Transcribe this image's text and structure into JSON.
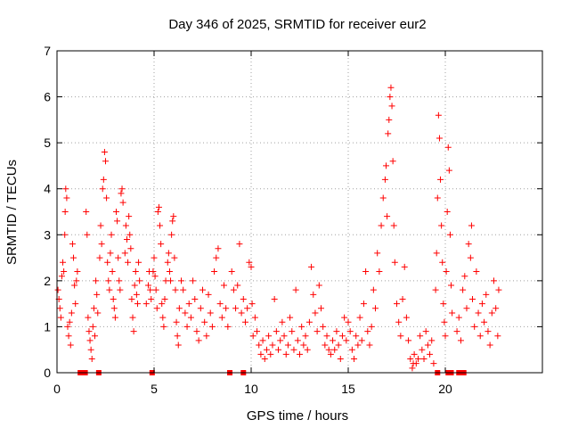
{
  "chart_data": {
    "type": "scatter",
    "title": "Day 346 of 2025, SRMTID for receiver eur2",
    "xlabel": "GPS time / hours",
    "ylabel": "SRMTID / TECUs",
    "xlim": [
      0,
      25
    ],
    "ylim": [
      0,
      7
    ],
    "xticks": [
      "0",
      "5",
      "10",
      "15",
      "20"
    ],
    "xtick_values": [
      0,
      5,
      10,
      15,
      20
    ],
    "yticks": [
      "0",
      "1",
      "2",
      "3",
      "4",
      "5",
      "6",
      "7"
    ],
    "ytick_values": [
      0,
      1,
      2,
      3,
      4,
      5,
      6,
      7
    ],
    "grid": true,
    "marker": "plus",
    "color": "#ff0000",
    "zero_markers_x": [
      1.2,
      1.45,
      2.15,
      4.9,
      8.9,
      9.6,
      19.6,
      20.15,
      20.3,
      20.7,
      20.95
    ],
    "series": [
      {
        "name": "SRMTID",
        "points": [
          [
            0.05,
            1.8
          ],
          [
            0.1,
            1.6
          ],
          [
            0.15,
            1.4
          ],
          [
            0.2,
            1.2
          ],
          [
            0.25,
            2.1
          ],
          [
            0.3,
            2.4
          ],
          [
            0.35,
            2.2
          ],
          [
            0.4,
            3.0
          ],
          [
            0.42,
            3.5
          ],
          [
            0.45,
            4.0
          ],
          [
            0.5,
            3.8
          ],
          [
            0.55,
            1.0
          ],
          [
            0.6,
            0.8
          ],
          [
            0.65,
            1.1
          ],
          [
            0.7,
            0.6
          ],
          [
            0.75,
            1.3
          ],
          [
            0.8,
            2.8
          ],
          [
            0.85,
            2.5
          ],
          [
            0.9,
            1.9
          ],
          [
            0.95,
            1.5
          ],
          [
            1.0,
            2.0
          ],
          [
            1.05,
            2.2
          ],
          [
            1.5,
            3.5
          ],
          [
            1.55,
            3.0
          ],
          [
            1.6,
            1.2
          ],
          [
            1.65,
            0.9
          ],
          [
            1.7,
            0.7
          ],
          [
            1.75,
            0.5
          ],
          [
            1.8,
            0.3
          ],
          [
            1.85,
            1.0
          ],
          [
            1.9,
            1.4
          ],
          [
            1.95,
            0.8
          ],
          [
            2.0,
            2.0
          ],
          [
            2.05,
            1.7
          ],
          [
            2.1,
            1.3
          ],
          [
            2.2,
            2.5
          ],
          [
            2.25,
            3.2
          ],
          [
            2.3,
            2.8
          ],
          [
            2.35,
            4.0
          ],
          [
            2.4,
            4.2
          ],
          [
            2.45,
            4.8
          ],
          [
            2.5,
            4.6
          ],
          [
            2.55,
            3.8
          ],
          [
            2.6,
            2.4
          ],
          [
            2.65,
            2.0
          ],
          [
            2.7,
            1.8
          ],
          [
            2.75,
            2.6
          ],
          [
            2.8,
            3.0
          ],
          [
            2.85,
            2.2
          ],
          [
            2.9,
            1.6
          ],
          [
            2.95,
            1.4
          ],
          [
            3.0,
            1.2
          ],
          [
            3.05,
            3.5
          ],
          [
            3.1,
            3.3
          ],
          [
            3.15,
            2.5
          ],
          [
            3.2,
            2.0
          ],
          [
            3.25,
            1.8
          ],
          [
            3.3,
            3.9
          ],
          [
            3.35,
            4.0
          ],
          [
            3.4,
            3.7
          ],
          [
            3.5,
            2.6
          ],
          [
            3.55,
            3.2
          ],
          [
            3.6,
            2.9
          ],
          [
            3.65,
            2.4
          ],
          [
            3.7,
            3.4
          ],
          [
            3.75,
            3.0
          ],
          [
            3.8,
            2.7
          ],
          [
            3.85,
            1.6
          ],
          [
            3.9,
            1.2
          ],
          [
            3.95,
            0.9
          ],
          [
            4.0,
            1.9
          ],
          [
            4.05,
            2.2
          ],
          [
            4.1,
            1.7
          ],
          [
            4.15,
            1.5
          ],
          [
            4.2,
            2.4
          ],
          [
            4.25,
            2.0
          ],
          [
            4.6,
            1.5
          ],
          [
            4.7,
            1.9
          ],
          [
            4.75,
            2.2
          ],
          [
            4.8,
            1.8
          ],
          [
            4.85,
            1.6
          ],
          [
            4.95,
            2.2
          ],
          [
            5.0,
            2.5
          ],
          [
            5.05,
            2.1
          ],
          [
            5.1,
            1.8
          ],
          [
            5.15,
            1.4
          ],
          [
            5.2,
            3.5
          ],
          [
            5.25,
            3.6
          ],
          [
            5.3,
            3.2
          ],
          [
            5.35,
            2.8
          ],
          [
            5.4,
            1.5
          ],
          [
            5.45,
            1.2
          ],
          [
            5.5,
            1.0
          ],
          [
            5.55,
            1.6
          ],
          [
            5.6,
            2.0
          ],
          [
            5.7,
            2.4
          ],
          [
            5.75,
            2.6
          ],
          [
            5.8,
            2.2
          ],
          [
            5.85,
            2.0
          ],
          [
            5.9,
            3.0
          ],
          [
            5.95,
            3.3
          ],
          [
            6.0,
            3.4
          ],
          [
            6.05,
            2.5
          ],
          [
            6.1,
            1.8
          ],
          [
            6.15,
            1.1
          ],
          [
            6.2,
            0.8
          ],
          [
            6.25,
            0.6
          ],
          [
            6.3,
            1.4
          ],
          [
            6.4,
            2.0
          ],
          [
            6.5,
            1.8
          ],
          [
            6.6,
            1.3
          ],
          [
            6.7,
            1.0
          ],
          [
            6.8,
            1.5
          ],
          [
            6.9,
            1.2
          ],
          [
            7.0,
            2.0
          ],
          [
            7.1,
            1.6
          ],
          [
            7.2,
            0.9
          ],
          [
            7.3,
            0.7
          ],
          [
            7.4,
            1.4
          ],
          [
            7.5,
            1.8
          ],
          [
            7.6,
            1.1
          ],
          [
            7.7,
            0.8
          ],
          [
            7.8,
            1.7
          ],
          [
            7.9,
            1.3
          ],
          [
            8.0,
            1.0
          ],
          [
            8.1,
            2.2
          ],
          [
            8.2,
            2.5
          ],
          [
            8.3,
            2.7
          ],
          [
            8.4,
            1.5
          ],
          [
            8.5,
            1.2
          ],
          [
            8.6,
            1.9
          ],
          [
            8.7,
            1.4
          ],
          [
            8.8,
            1.0
          ],
          [
            9.0,
            2.2
          ],
          [
            9.1,
            1.8
          ],
          [
            9.2,
            1.4
          ],
          [
            9.3,
            1.9
          ],
          [
            9.4,
            2.8
          ],
          [
            9.5,
            1.3
          ],
          [
            9.6,
            1.6
          ],
          [
            9.7,
            1.1
          ],
          [
            9.8,
            1.4
          ],
          [
            9.9,
            2.4
          ],
          [
            10.0,
            2.3
          ],
          [
            10.05,
            1.5
          ],
          [
            10.1,
            0.8
          ],
          [
            10.2,
            1.2
          ],
          [
            10.3,
            0.9
          ],
          [
            10.4,
            0.6
          ],
          [
            10.5,
            0.4
          ],
          [
            10.6,
            0.7
          ],
          [
            10.7,
            0.3
          ],
          [
            10.8,
            0.5
          ],
          [
            10.9,
            0.8
          ],
          [
            11.0,
            0.4
          ],
          [
            11.1,
            0.6
          ],
          [
            11.2,
            1.6
          ],
          [
            11.3,
            0.9
          ],
          [
            11.4,
            0.5
          ],
          [
            11.5,
            0.7
          ],
          [
            11.6,
            1.1
          ],
          [
            11.7,
            0.8
          ],
          [
            11.8,
            0.4
          ],
          [
            11.9,
            0.6
          ],
          [
            12.0,
            1.2
          ],
          [
            12.1,
            0.9
          ],
          [
            12.2,
            0.5
          ],
          [
            12.3,
            1.8
          ],
          [
            12.4,
            0.7
          ],
          [
            12.5,
            0.4
          ],
          [
            12.6,
            1.0
          ],
          [
            12.7,
            0.6
          ],
          [
            12.8,
            0.8
          ],
          [
            12.9,
            0.5
          ],
          [
            13.0,
            1.1
          ],
          [
            13.1,
            2.3
          ],
          [
            13.2,
            1.7
          ],
          [
            13.3,
            1.3
          ],
          [
            13.4,
            0.9
          ],
          [
            13.5,
            1.9
          ],
          [
            13.6,
            1.4
          ],
          [
            13.7,
            1.0
          ],
          [
            13.8,
            0.6
          ],
          [
            13.9,
            0.8
          ],
          [
            14.0,
            0.5
          ],
          [
            14.1,
            0.4
          ],
          [
            14.2,
            0.7
          ],
          [
            14.3,
            0.5
          ],
          [
            14.4,
            0.9
          ],
          [
            14.5,
            0.6
          ],
          [
            14.6,
            0.3
          ],
          [
            14.7,
            0.8
          ],
          [
            14.8,
            1.2
          ],
          [
            14.9,
            0.7
          ],
          [
            15.0,
            1.1
          ],
          [
            15.1,
            0.9
          ],
          [
            15.2,
            0.5
          ],
          [
            15.3,
            0.3
          ],
          [
            15.4,
            0.8
          ],
          [
            15.5,
            0.6
          ],
          [
            15.6,
            1.2
          ],
          [
            15.7,
            0.7
          ],
          [
            15.8,
            1.5
          ],
          [
            15.9,
            2.2
          ],
          [
            16.0,
            0.9
          ],
          [
            16.1,
            0.6
          ],
          [
            16.2,
            1.0
          ],
          [
            16.3,
            1.8
          ],
          [
            16.4,
            1.4
          ],
          [
            16.5,
            2.6
          ],
          [
            16.6,
            2.2
          ],
          [
            16.7,
            3.2
          ],
          [
            16.8,
            3.8
          ],
          [
            16.9,
            4.2
          ],
          [
            16.95,
            4.5
          ],
          [
            17.0,
            3.4
          ],
          [
            17.05,
            5.2
          ],
          [
            17.1,
            5.5
          ],
          [
            17.15,
            6.0
          ],
          [
            17.2,
            6.2
          ],
          [
            17.25,
            5.8
          ],
          [
            17.3,
            4.6
          ],
          [
            17.35,
            3.2
          ],
          [
            17.4,
            2.4
          ],
          [
            17.5,
            1.5
          ],
          [
            17.6,
            1.1
          ],
          [
            17.7,
            0.8
          ],
          [
            17.8,
            1.6
          ],
          [
            17.9,
            2.3
          ],
          [
            18.0,
            1.2
          ],
          [
            18.1,
            0.7
          ],
          [
            18.2,
            0.3
          ],
          [
            18.3,
            0.1
          ],
          [
            18.35,
            0.2
          ],
          [
            18.4,
            0.4
          ],
          [
            18.5,
            0.2
          ],
          [
            18.6,
            0.3
          ],
          [
            18.7,
            0.8
          ],
          [
            18.8,
            0.5
          ],
          [
            18.9,
            0.3
          ],
          [
            19.0,
            0.9
          ],
          [
            19.1,
            0.6
          ],
          [
            19.2,
            0.4
          ],
          [
            19.3,
            0.7
          ],
          [
            19.4,
            0.2
          ],
          [
            19.5,
            1.8
          ],
          [
            19.55,
            2.6
          ],
          [
            19.6,
            3.8
          ],
          [
            19.65,
            5.6
          ],
          [
            19.7,
            5.1
          ],
          [
            19.75,
            4.2
          ],
          [
            19.8,
            3.2
          ],
          [
            19.85,
            2.4
          ],
          [
            19.9,
            1.5
          ],
          [
            19.95,
            1.1
          ],
          [
            20.0,
            0.8
          ],
          [
            20.05,
            2.2
          ],
          [
            20.1,
            3.5
          ],
          [
            20.15,
            4.9
          ],
          [
            20.2,
            4.4
          ],
          [
            20.25,
            3.0
          ],
          [
            20.3,
            1.9
          ],
          [
            20.35,
            1.3
          ],
          [
            20.6,
            0.9
          ],
          [
            20.7,
            1.2
          ],
          [
            20.8,
            0.7
          ],
          [
            20.9,
            1.8
          ],
          [
            21.0,
            2.1
          ],
          [
            21.1,
            1.4
          ],
          [
            21.2,
            2.8
          ],
          [
            21.3,
            2.5
          ],
          [
            21.35,
            3.2
          ],
          [
            21.4,
            1.6
          ],
          [
            21.5,
            1.0
          ],
          [
            21.6,
            2.2
          ],
          [
            21.7,
            1.3
          ],
          [
            21.8,
            0.8
          ],
          [
            21.9,
            1.5
          ],
          [
            22.0,
            1.1
          ],
          [
            22.1,
            1.7
          ],
          [
            22.2,
            0.9
          ],
          [
            22.3,
            0.6
          ],
          [
            22.4,
            1.3
          ],
          [
            22.5,
            2.0
          ],
          [
            22.6,
            1.4
          ],
          [
            22.7,
            0.8
          ],
          [
            22.75,
            1.8
          ]
        ]
      }
    ]
  }
}
